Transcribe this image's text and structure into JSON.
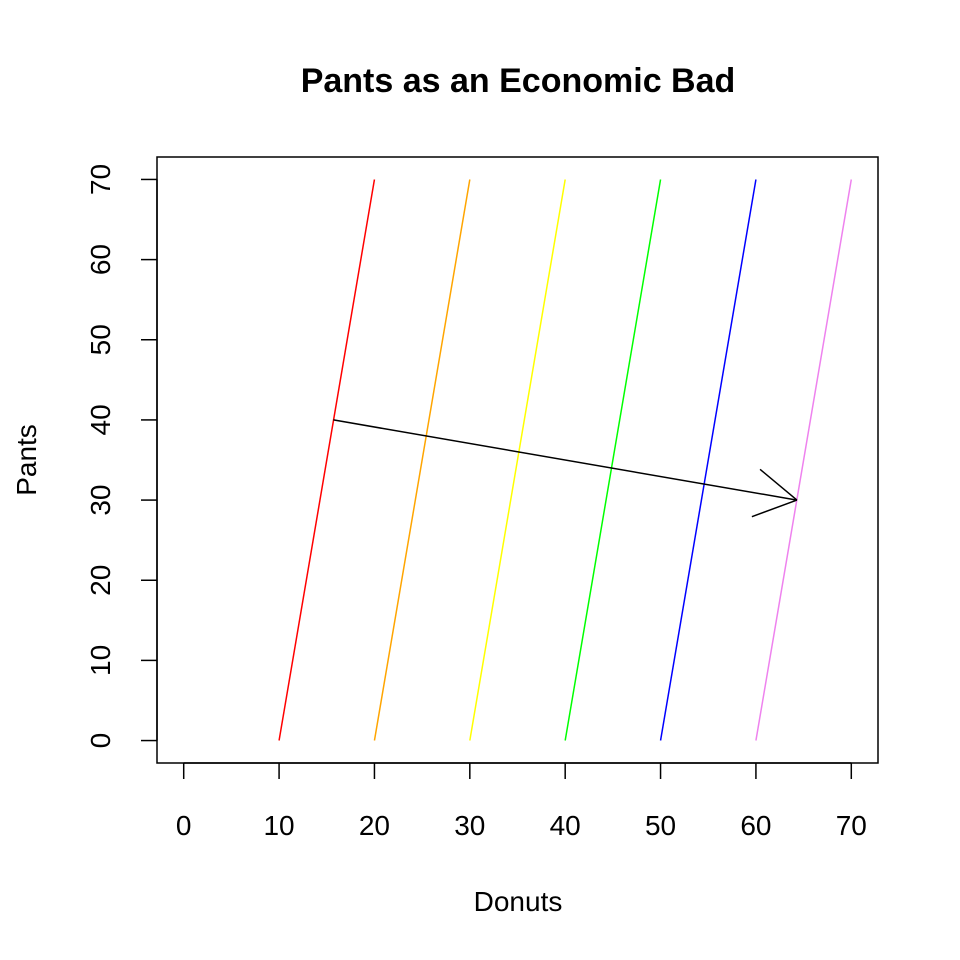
{
  "chart_data": {
    "type": "line",
    "title": "Pants as an Economic Bad",
    "xlabel": "Donuts",
    "ylabel": "Pants",
    "xlim": [
      -2.8,
      72.8
    ],
    "ylim": [
      -2.8,
      72.8
    ],
    "x_ticks": [
      0,
      10,
      20,
      30,
      40,
      50,
      60,
      70
    ],
    "y_ticks": [
      0,
      10,
      20,
      30,
      40,
      50,
      60,
      70
    ],
    "grid": false,
    "series": [
      {
        "color": "#ff0000",
        "x": [
          10,
          20
        ],
        "y": [
          0,
          70
        ]
      },
      {
        "color": "#ffa500",
        "x": [
          20,
          30
        ],
        "y": [
          0,
          70
        ]
      },
      {
        "color": "#ffff00",
        "x": [
          30,
          40
        ],
        "y": [
          0,
          70
        ]
      },
      {
        "color": "#00ff00",
        "x": [
          40,
          50
        ],
        "y": [
          0,
          70
        ]
      },
      {
        "color": "#0000ff",
        "x": [
          50,
          60
        ],
        "y": [
          0,
          70
        ]
      },
      {
        "color": "#ee82ee",
        "x": [
          60,
          70
        ],
        "y": [
          0,
          70
        ]
      }
    ],
    "annotations": [
      {
        "type": "arrow",
        "color": "#000000",
        "from": [
          15.7,
          40
        ],
        "to": [
          64.3,
          30
        ]
      }
    ]
  }
}
